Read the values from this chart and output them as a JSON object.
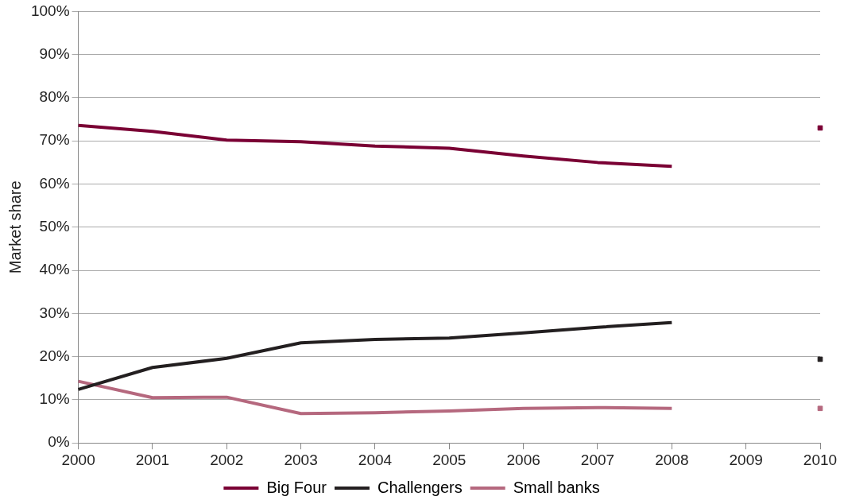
{
  "chart_data": {
    "type": "line",
    "ylabel": "Market share",
    "categories": [
      "2000",
      "2001",
      "2002",
      "2003",
      "2004",
      "2005",
      "2006",
      "2007",
      "2008",
      "2009",
      "2010"
    ],
    "ylim": [
      0,
      100
    ],
    "yticks": [
      {
        "value": 0,
        "label": "0%"
      },
      {
        "value": 10,
        "label": "10%"
      },
      {
        "value": 20,
        "label": "20%"
      },
      {
        "value": 30,
        "label": "30%"
      },
      {
        "value": 40,
        "label": "40%"
      },
      {
        "value": 50,
        "label": "50%"
      },
      {
        "value": 60,
        "label": "60%"
      },
      {
        "value": 70,
        "label": "70%"
      },
      {
        "value": 80,
        "label": "80%"
      },
      {
        "value": 90,
        "label": "90%"
      },
      {
        "value": 100,
        "label": "100%"
      }
    ],
    "grid": "y",
    "legend": "bottom",
    "line_style": "solid",
    "series": [
      {
        "name": "Big Four",
        "color": "#7a0034",
        "values": [
          73.6,
          72.2,
          70.2,
          69.8,
          68.8,
          68.3,
          66.5,
          65.0,
          64.1,
          null,
          73.0
        ]
      },
      {
        "name": "Challengers",
        "color": "#231f20",
        "values": [
          12.4,
          17.5,
          19.6,
          23.2,
          24.0,
          24.3,
          25.5,
          26.8,
          27.9,
          null,
          19.4
        ]
      },
      {
        "name": "Small banks",
        "color": "#b5687e",
        "values": [
          14.3,
          10.5,
          10.6,
          6.8,
          7.0,
          7.4,
          8.0,
          8.2,
          8.0,
          null,
          8.0
        ]
      }
    ]
  }
}
